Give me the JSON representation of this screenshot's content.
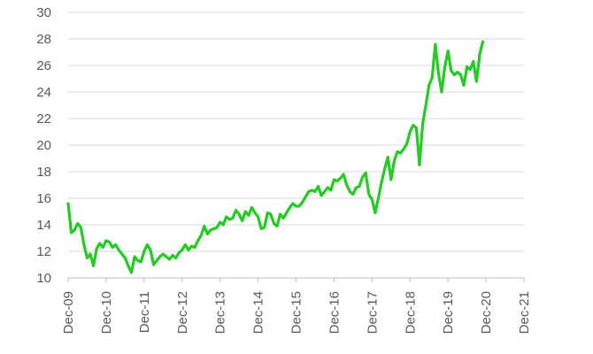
{
  "chart_data": {
    "type": "line",
    "title": "",
    "xlabel": "",
    "ylabel": "",
    "ylim": [
      10,
      30
    ],
    "yticks": [
      10,
      12,
      14,
      16,
      18,
      20,
      22,
      24,
      26,
      28,
      30
    ],
    "xticks": [
      "Dec-09",
      "Dec-10",
      "Dec-11",
      "Dec-12",
      "Dec-13",
      "Dec-14",
      "Dec-15",
      "Dec-16",
      "Dec-17",
      "Dec-18",
      "Dec-19",
      "Dec-20",
      "Dec-21"
    ],
    "grid": "horizontal",
    "legend": "none",
    "line_color": "#22cc22",
    "x_start": "Dec-09",
    "x_frequency": "monthly",
    "series": [
      {
        "values": [
          15.6,
          13.4,
          13.6,
          14.1,
          13.8,
          12.5,
          11.5,
          11.8,
          10.9,
          12.2,
          12.6,
          12.3,
          12.8,
          12.7,
          12.3,
          12.5,
          12.1,
          11.8,
          11.5,
          10.9,
          10.4,
          11.6,
          11.3,
          11.2,
          12.0,
          12.5,
          12.1,
          11.0,
          11.3,
          11.6,
          11.8,
          11.6,
          11.4,
          11.7,
          11.5,
          11.9,
          12.1,
          12.5,
          12.1,
          12.4,
          12.3,
          12.8,
          13.2,
          13.9,
          13.3,
          13.6,
          13.7,
          13.8,
          14.2,
          14.0,
          14.6,
          14.4,
          14.5,
          15.1,
          14.8,
          14.3,
          15.0,
          14.7,
          15.3,
          14.9,
          14.6,
          13.7,
          13.8,
          14.9,
          14.8,
          14.1,
          13.9,
          14.8,
          14.5,
          14.9,
          15.3,
          15.6,
          15.4,
          15.4,
          15.7,
          16.1,
          16.5,
          16.6,
          16.5,
          16.9,
          16.2,
          16.5,
          16.8,
          16.6,
          17.4,
          17.3,
          17.5,
          17.8,
          17.0,
          16.5,
          16.3,
          16.8,
          16.9,
          17.6,
          17.9,
          16.3,
          15.9,
          14.9,
          16.0,
          17.2,
          18.2,
          19.1,
          17.4,
          18.8,
          19.5,
          19.4,
          19.7,
          20.1,
          21.0,
          21.5,
          21.3,
          18.5,
          21.6,
          23.0,
          24.5,
          25.1,
          27.6,
          25.4,
          24.0,
          25.9,
          27.1,
          25.6,
          25.3,
          25.5,
          25.3,
          24.5,
          25.9,
          25.7,
          26.3,
          24.8,
          26.8,
          27.8
        ]
      }
    ]
  }
}
